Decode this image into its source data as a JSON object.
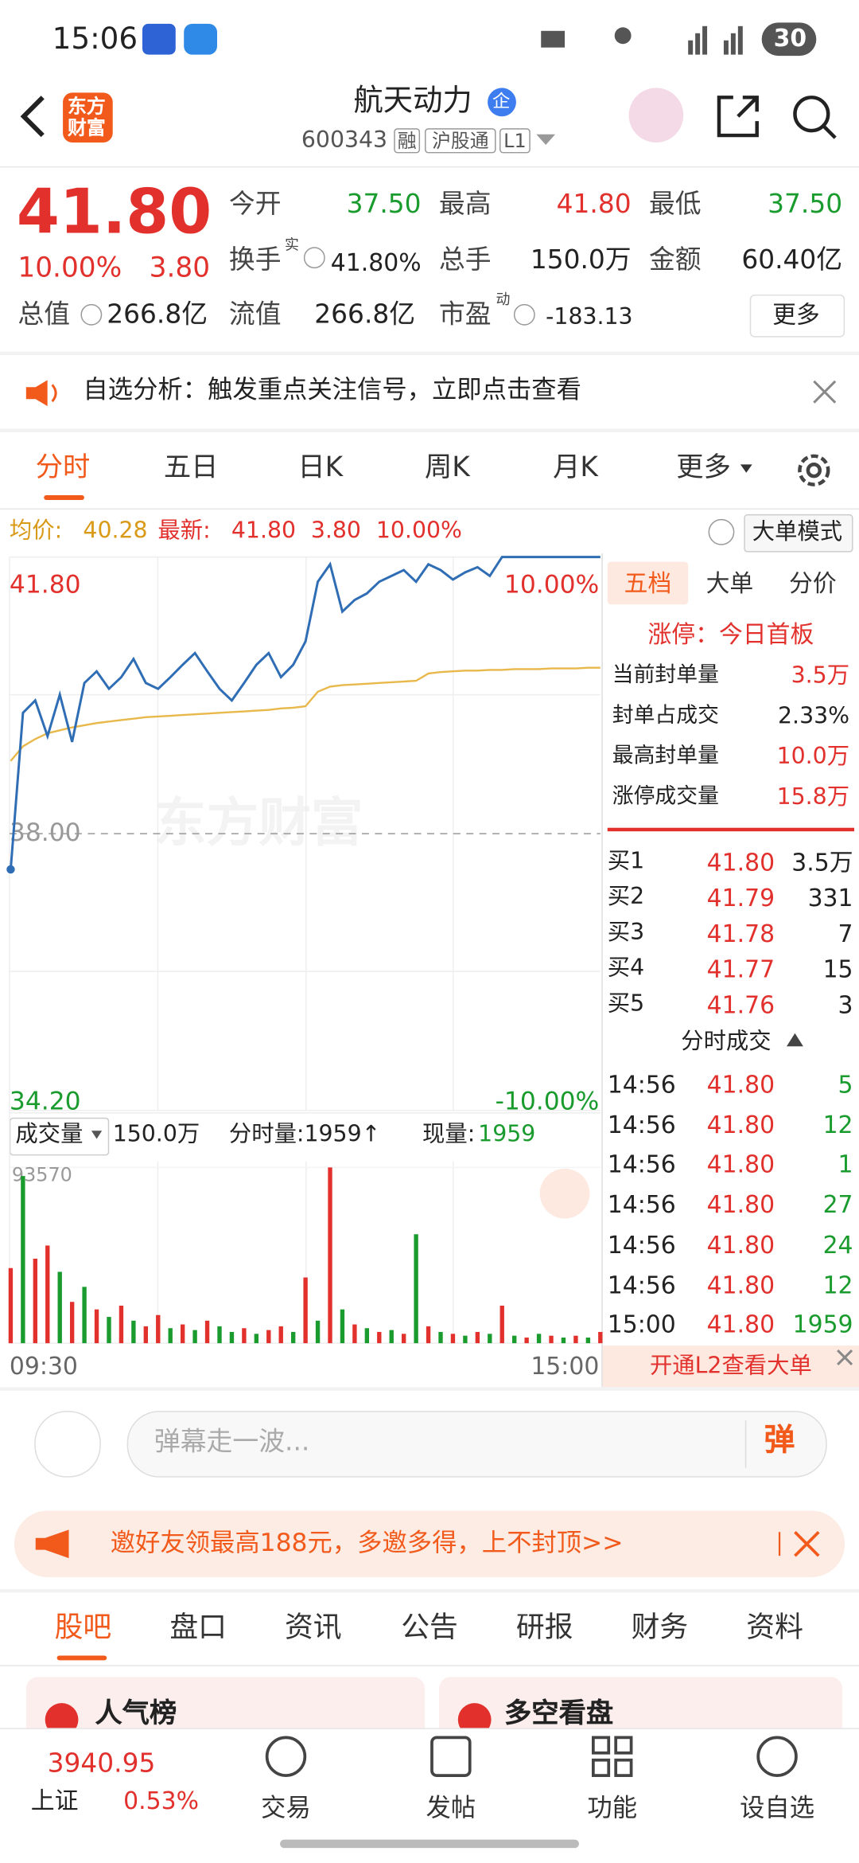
{
  "status_bar": {
    "time": "15:06",
    "battery": "30"
  },
  "header": {
    "logo": [
      "东方",
      "财富"
    ],
    "title": "航天动力",
    "badge": "企",
    "code": "600343",
    "tags": [
      "融",
      "沪股通",
      "L1"
    ]
  },
  "quote": {
    "price": "41.80",
    "change_pct": "10.00%",
    "change": "3.80",
    "more": "更多",
    "fields": [
      {
        "label": "今开",
        "value": "37.50"
      },
      {
        "label": "最高",
        "value": "41.80"
      },
      {
        "label": "最低",
        "value": "37.50"
      },
      {
        "label": "换手",
        "sup": "实",
        "value": "41.80%"
      },
      {
        "label": "总手",
        "value": "150.0万"
      },
      {
        "label": "金额",
        "value": "60.40亿"
      },
      {
        "label": "总值",
        "value": "266.8亿"
      },
      {
        "label": "流值",
        "value": "266.8亿"
      },
      {
        "label": "市盈",
        "sup": "动",
        "value": "-183.13"
      }
    ]
  },
  "alert": "自选分析：触发重点关注信号，立即点击查看",
  "period_tabs": [
    "分时",
    "五日",
    "日K",
    "周K",
    "月K",
    "更多"
  ],
  "intraday": {
    "avg_label": "均价:",
    "avg": "40.28",
    "latest_label": "最新:",
    "latest": "41.80",
    "change": "3.80",
    "change_pct": "10.00%",
    "mode_button": "大单模式",
    "watermark": "东方财富",
    "time_start": "09:30",
    "time_end": "15:00",
    "volume_selector": "成交量",
    "volume_total": "150.0万",
    "minute_volume": "分时量:1959↑",
    "current_volume_label": "现量:",
    "current_volume": "1959"
  },
  "chart_data": [
    {
      "type": "line",
      "ylim": [
        34.2,
        41.8
      ],
      "yticks": [
        {
          "value": 34.2,
          "label": "34.20"
        },
        {
          "value": 38,
          "label": "38.00"
        },
        {
          "value": 41.8,
          "label": "41.80"
        }
      ],
      "y2lim": [
        -10,
        10
      ],
      "y2ticks": [
        {
          "value": -10,
          "label": "-10.00%"
        },
        {
          "value": 10,
          "label": "10.00%"
        }
      ],
      "grid": true,
      "series": [
        {
          "color": "#2f6db5",
          "values": [
            37.51,
            39.66,
            39.83,
            39.34,
            39.91,
            39.26,
            40.07,
            40.23,
            39.99,
            40.15,
            40.4,
            40.07,
            39.99,
            40.15,
            40.32,
            40.48,
            40.23,
            39.99,
            39.83,
            40.07,
            40.32,
            40.48,
            40.15,
            40.32,
            40.64,
            41.46,
            41.7,
            41.05,
            41.21,
            41.3,
            41.46,
            41.54,
            41.62,
            41.46,
            41.7,
            41.62,
            41.49,
            41.59,
            41.66,
            41.54,
            41.8,
            41.8,
            41.8,
            41.8,
            41.8,
            41.8,
            41.8,
            41.8,
            41.8
          ]
        },
        {
          "color": "#e8b84a",
          "values": [
            39.0,
            39.2,
            39.3,
            39.38,
            39.42,
            39.46,
            39.49,
            39.52,
            39.54,
            39.56,
            39.58,
            39.6,
            39.61,
            39.62,
            39.63,
            39.64,
            39.65,
            39.66,
            39.67,
            39.68,
            39.69,
            39.7,
            39.72,
            39.73,
            39.75,
            39.95,
            40.02,
            40.04,
            40.05,
            40.06,
            40.07,
            40.08,
            40.09,
            40.1,
            40.2,
            40.22,
            40.23,
            40.24,
            40.24,
            40.25,
            40.25,
            40.26,
            40.26,
            40.26,
            40.27,
            40.27,
            40.27,
            40.28,
            40.28
          ]
        }
      ]
    },
    {
      "type": "bar",
      "ylim": [
        0,
        93570
      ],
      "yticks": [
        93570
      ],
      "values": [
        40000,
        89000,
        45000,
        52000,
        38000,
        22000,
        30000,
        18000,
        14000,
        20000,
        12000,
        9000,
        15000,
        8000,
        10000,
        7000,
        12000,
        9000,
        6000,
        8000,
        5000,
        7000,
        9000,
        6000,
        35000,
        12000,
        93570,
        18000,
        10000,
        8000,
        6000,
        7000,
        5000,
        58000,
        9000,
        6000,
        5000,
        4000,
        6000,
        5000,
        20000,
        4000,
        3000,
        5000,
        4000,
        3000,
        4000,
        3000,
        6000
      ],
      "colors": [
        "#e2312d",
        "#1a9b2e",
        "#e2312d",
        "#e2312d",
        "#1a9b2e",
        "#e2312d",
        "#1a9b2e",
        "#e2312d",
        "#1a9b2e",
        "#e2312d",
        "#1a9b2e",
        "#e2312d",
        "#e2312d",
        "#1a9b2e",
        "#e2312d",
        "#1a9b2e",
        "#e2312d",
        "#1a9b2e",
        "#1a9b2e",
        "#e2312d",
        "#1a9b2e",
        "#e2312d",
        "#e2312d",
        "#1a9b2e",
        "#e2312d",
        "#1a9b2e",
        "#e2312d",
        "#1a9b2e",
        "#e2312d",
        "#1a9b2e",
        "#e2312d",
        "#1a9b2e",
        "#e2312d",
        "#1a9b2e",
        "#e2312d",
        "#1a9b2e",
        "#e2312d",
        "#1a9b2e",
        "#e2312d",
        "#1a9b2e",
        "#e2312d",
        "#1a9b2e",
        "#e2312d",
        "#1a9b2e",
        "#e2312d",
        "#1a9b2e",
        "#e2312d",
        "#1a9b2e",
        "#e2312d"
      ]
    }
  ],
  "order_panel": {
    "tabs": [
      "五档",
      "大单",
      "分价"
    ],
    "limit_status": "涨停：今日首板",
    "stats": [
      {
        "label": "当前封单量",
        "value": "3.5万"
      },
      {
        "label": "封单占成交",
        "value": "2.33%"
      },
      {
        "label": "最高封单量",
        "value": "10.0万"
      },
      {
        "label": "涨停成交量",
        "value": "15.8万"
      }
    ],
    "bids": [
      {
        "label": "买1",
        "price": "41.80",
        "volume": "3.5万"
      },
      {
        "label": "买2",
        "price": "41.79",
        "volume": "331"
      },
      {
        "label": "买3",
        "price": "41.78",
        "volume": "7"
      },
      {
        "label": "买4",
        "price": "41.77",
        "volume": "15"
      },
      {
        "label": "买5",
        "price": "41.76",
        "volume": "3"
      }
    ],
    "trades_title": "分时成交",
    "trades": [
      {
        "time": "14:56",
        "price": "41.80",
        "volume": "5"
      },
      {
        "time": "14:56",
        "price": "41.80",
        "volume": "12"
      },
      {
        "time": "14:56",
        "price": "41.80",
        "volume": "1"
      },
      {
        "time": "14:56",
        "price": "41.80",
        "volume": "27"
      },
      {
        "time": "14:56",
        "price": "41.80",
        "volume": "24"
      },
      {
        "time": "14:56",
        "price": "41.80",
        "volume": "12"
      },
      {
        "time": "15:00",
        "price": "41.80",
        "volume": "1959"
      }
    ],
    "l2_prompt": "开通L2查看大单"
  },
  "comment": {
    "placeholder": "弹幕走一波...",
    "button": "弹"
  },
  "banner": "邀好友领最高188元，多邀多得，上不封顶>>",
  "section_tabs": [
    "股吧",
    "盘口",
    "资讯",
    "公告",
    "研报",
    "财务",
    "资料"
  ],
  "cards": [
    "人气榜",
    "多空看盘"
  ],
  "bottom_nav": {
    "index_value": "3940.95",
    "index_name": "上证",
    "index_change": "0.53%",
    "items": [
      "交易",
      "发帖",
      "功能",
      "设自选"
    ]
  }
}
